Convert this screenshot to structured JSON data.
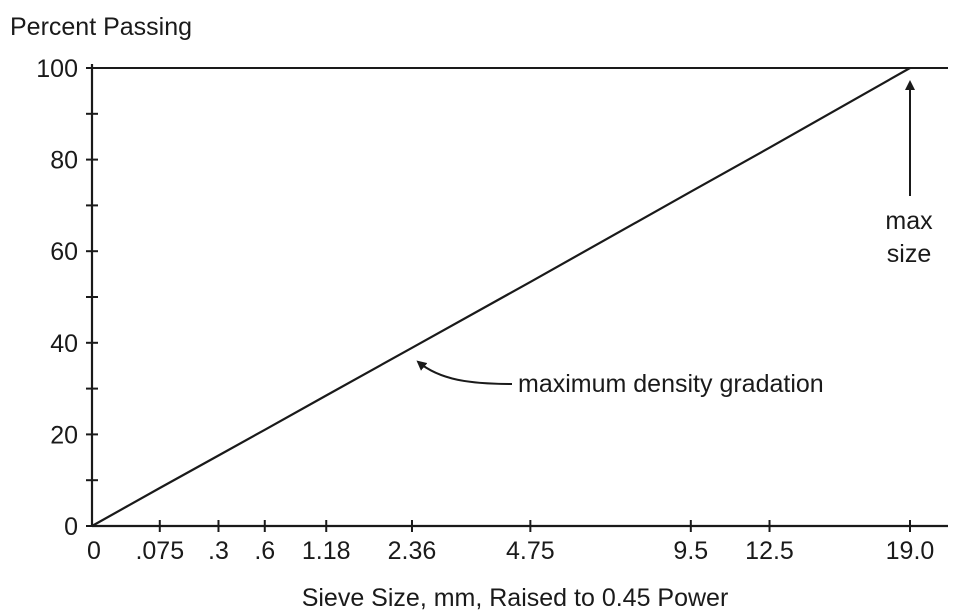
{
  "chart_data": {
    "type": "line",
    "title": "",
    "ylabel": "Percent Passing",
    "xlabel": "Sieve Size, mm, Raised to 0.45 Power",
    "x_scale": "power 0.45",
    "xlim": [
      0,
      19.0
    ],
    "ylim": [
      0,
      100
    ],
    "grid": false,
    "y_ticks": [
      0,
      20,
      40,
      60,
      80,
      100
    ],
    "y_tick_labels": [
      "0",
      "20",
      "40",
      "60",
      "80",
      "100"
    ],
    "y_minor_ticks": [
      10,
      30,
      50,
      70,
      90
    ],
    "x_ticks": [
      0,
      0.075,
      0.3,
      0.6,
      1.18,
      2.36,
      4.75,
      9.5,
      12.5,
      19.0
    ],
    "x_tick_labels": [
      "0",
      ".075",
      ".3",
      ".6",
      "1.18",
      "2.36",
      "4.75",
      "9.5",
      "12.5",
      "19.0"
    ],
    "series": [
      {
        "x": [
          0,
          0.075,
          0.3,
          0.6,
          1.18,
          2.36,
          4.75,
          9.5,
          12.5,
          19.0
        ],
        "y": [
          0,
          8.3,
          15.4,
          21.0,
          28.5,
          38.9,
          53.3,
          73.0,
          82.6,
          100
        ],
        "color": "#1a1a1a"
      }
    ],
    "annotations": [
      {
        "text": "maximum density gradation",
        "points_to": {
          "x": 2.36,
          "y": 38.9
        }
      },
      {
        "text_lines": [
          "max",
          "size"
        ],
        "points_to": {
          "x": 19.0,
          "y": 100
        }
      }
    ]
  }
}
